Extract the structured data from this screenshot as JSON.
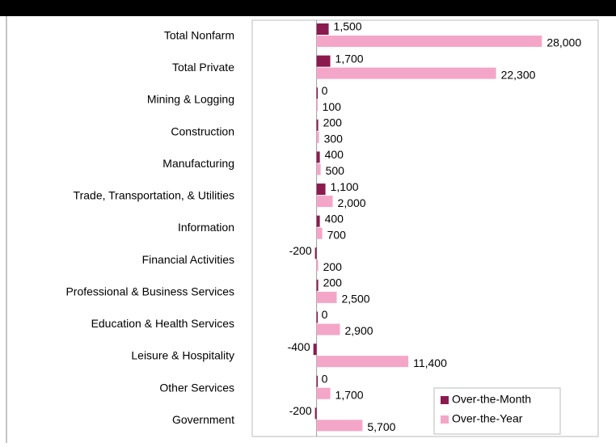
{
  "chart_data": {
    "type": "bar",
    "orientation": "horizontal",
    "categories": [
      "Total Nonfarm",
      "Total Private",
      "Mining & Logging",
      "Construction",
      "Manufacturing",
      "Trade, Transportation, & Utilities",
      "Information",
      "Financial Activities",
      "Professional & Business Services",
      "Education & Health Services",
      "Leisure & Hospitality",
      "Other Services",
      "Government"
    ],
    "series": [
      {
        "name": "Over-the-Month",
        "color": "#8b1a4f",
        "values": [
          1500,
          1700,
          0,
          200,
          400,
          1100,
          400,
          -200,
          200,
          0,
          -400,
          0,
          -200
        ],
        "value_labels": [
          "1,500",
          "1,700",
          "0",
          "200",
          "400",
          "1,100",
          "400",
          "-200",
          "200",
          "0",
          "-400",
          "0",
          "-200"
        ]
      },
      {
        "name": "Over-the-Year",
        "color": "#f4a6c8",
        "values": [
          28000,
          22300,
          100,
          300,
          500,
          2000,
          700,
          200,
          2500,
          2900,
          11400,
          1700,
          5700
        ],
        "value_labels": [
          "28,000",
          "22,300",
          "100",
          "300",
          "500",
          "2,000",
          "700",
          "200",
          "2,500",
          "2,900",
          "11,400",
          "1,700",
          "5,700"
        ]
      }
    ],
    "xlim": [
      -8000,
      35000
    ],
    "legend": "lower right"
  }
}
